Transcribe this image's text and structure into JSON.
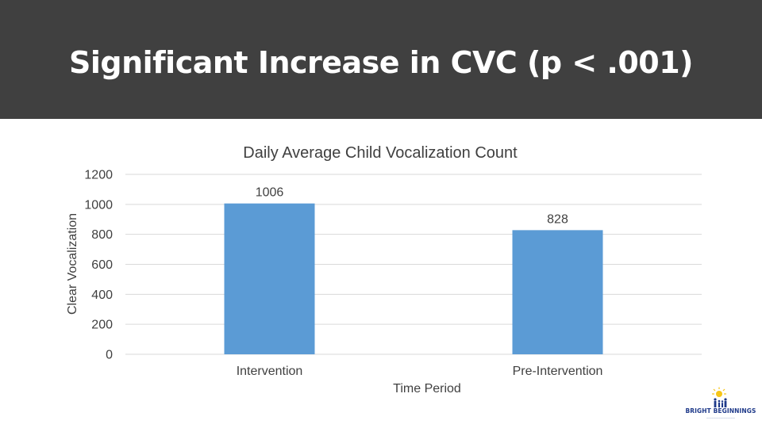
{
  "slide": {
    "title": "Significant Increase in CVC (p < .001)"
  },
  "colors": {
    "title_bar": "#404040",
    "bar": "#5b9bd5",
    "gridline": "#d9d9d9",
    "text": "#404040",
    "logo_sun": "#f5c518",
    "logo_text": "#1f3a8a"
  },
  "chart_data": {
    "type": "bar",
    "title": "Daily Average Child Vocalization Count",
    "xlabel": "Time Period",
    "ylabel": "Clear Vocalization",
    "categories": [
      "Intervention",
      "Pre-Intervention"
    ],
    "values": [
      1006,
      828
    ],
    "data_labels": [
      "1006",
      "828"
    ],
    "ylim": [
      0,
      1200
    ],
    "yticks": [
      0,
      200,
      400,
      600,
      800,
      1000,
      1200
    ],
    "grid": true,
    "legend": "none"
  },
  "logo": {
    "name": "BRIGHT BEGINNINGS",
    "icon": "sun-family-icon"
  }
}
